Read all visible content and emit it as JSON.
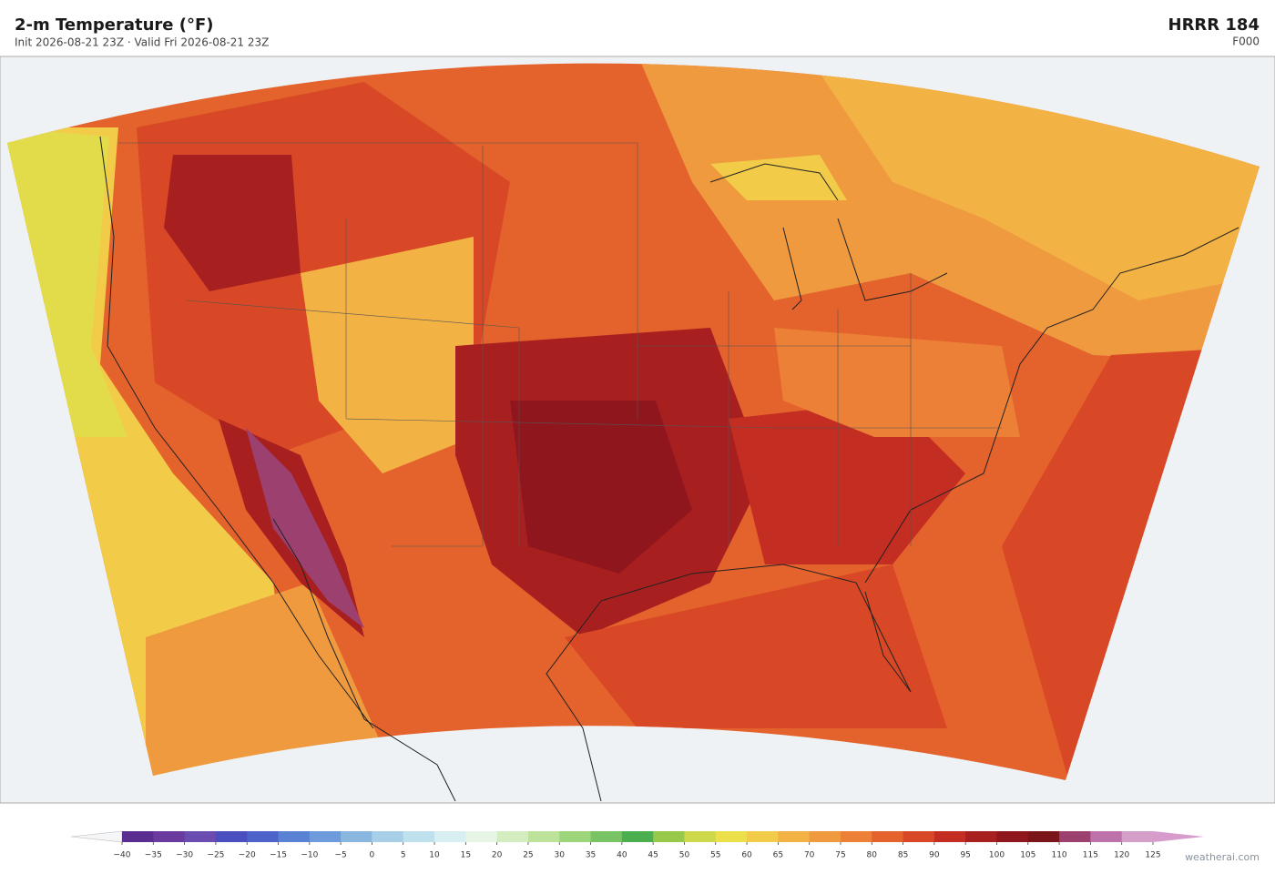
{
  "header": {
    "title": "2-m Temperature  (°F)",
    "subtitle": "Init 2026-08-21 23Z  ·  Valid Fri 2026-08-21 23Z",
    "model": "HRRR  184",
    "forecast_hour": "F000"
  },
  "colorbar": {
    "ticks": [
      {
        "value": -40,
        "label": "−40"
      },
      {
        "value": -35,
        "label": "−35"
      },
      {
        "value": -30,
        "label": "−30"
      },
      {
        "value": -25,
        "label": "−25"
      },
      {
        "value": -20,
        "label": "−20"
      },
      {
        "value": -15,
        "label": "−15"
      },
      {
        "value": -10,
        "label": "−10"
      },
      {
        "value": -5,
        "label": "−5"
      },
      0,
      5,
      10,
      15,
      20,
      25,
      30,
      35,
      40,
      45,
      50,
      55,
      60,
      65,
      70,
      75,
      80,
      85,
      90,
      95,
      100,
      105,
      110,
      115,
      120,
      125
    ],
    "colors": [
      "#5a2d91",
      "#6a3a9e",
      "#6b4cb0",
      "#4a4fbf",
      "#4d63c9",
      "#5a82d4",
      "#6e9bdc",
      "#8ab7e0",
      "#a7d0e8",
      "#bfe1ee",
      "#d8eff2",
      "#e6f5e5",
      "#d4edc0",
      "#bde39a",
      "#9dd57a",
      "#78c464",
      "#4caf4f",
      "#98c84a",
      "#cdd84a",
      "#ece04a",
      "#f2cb48",
      "#f2b244",
      "#ef9a3e",
      "#ec8036",
      "#e4622c",
      "#d84826",
      "#c32d22",
      "#a81f20",
      "#8f161c",
      "#7a1519",
      "#9c4070",
      "#bd72ab",
      "#d4a0c9"
    ],
    "under_color": "#f4f6f8",
    "over_color": "#d89ccc"
  },
  "footer": {
    "credit": "weatherai.com"
  }
}
